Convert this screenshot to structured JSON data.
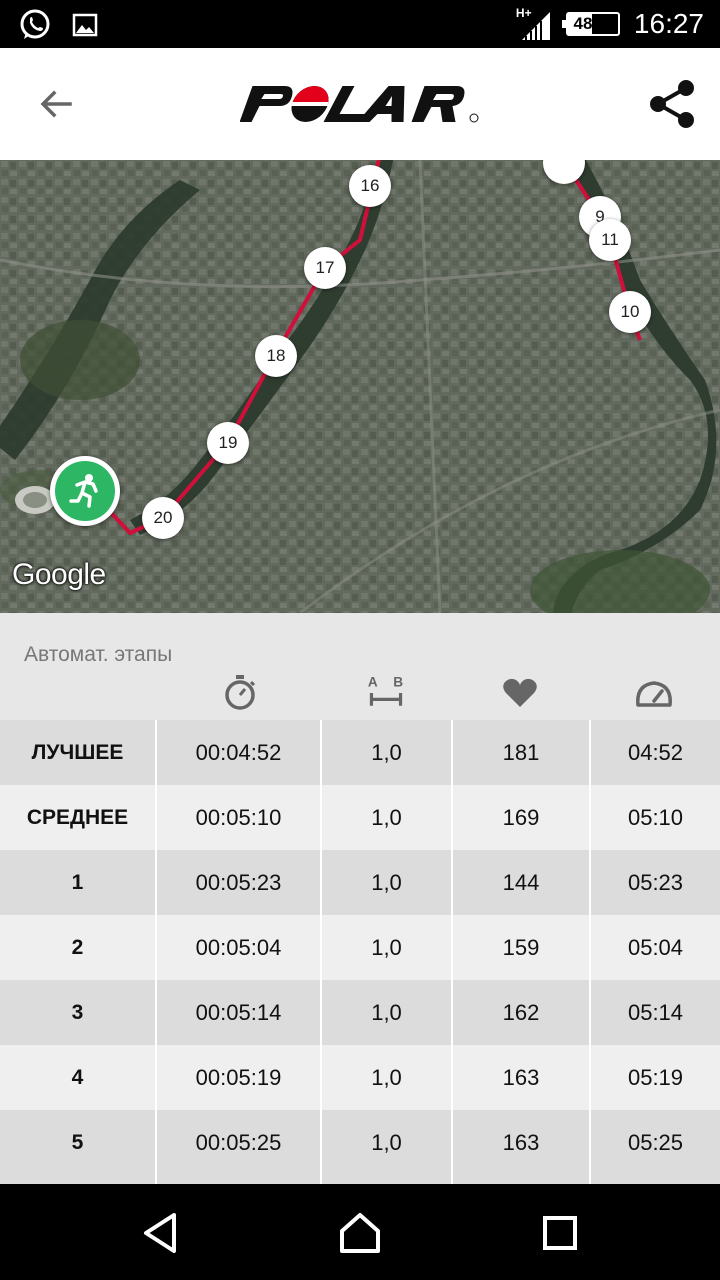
{
  "status_bar": {
    "time": "16:27",
    "battery_percent": "48 %",
    "battery_level": 0.48,
    "network": "H+"
  },
  "app_bar": {
    "logo_text": "POLAR",
    "back_icon": "arrow-left-icon",
    "share_icon": "share-icon"
  },
  "map": {
    "attribution": "Google",
    "route_color": "#d0103a",
    "start_color": "#2db664",
    "markers": [
      "16",
      "17",
      "18",
      "19",
      "20",
      "9",
      "11",
      "10"
    ]
  },
  "laps": {
    "title": "Автомат. этапы",
    "column_icons": [
      "stopwatch-icon",
      "distance-icon",
      "heart-icon",
      "speedometer-icon"
    ],
    "rows": [
      {
        "label": "ЛУЧШЕЕ",
        "time": "00:04:52",
        "distance": "1,0",
        "hr": "181",
        "pace": "04:52"
      },
      {
        "label": "СРЕДНЕЕ",
        "time": "00:05:10",
        "distance": "1,0",
        "hr": "169",
        "pace": "05:10"
      },
      {
        "label": "1",
        "time": "00:05:23",
        "distance": "1,0",
        "hr": "144",
        "pace": "05:23"
      },
      {
        "label": "2",
        "time": "00:05:04",
        "distance": "1,0",
        "hr": "159",
        "pace": "05:04"
      },
      {
        "label": "3",
        "time": "00:05:14",
        "distance": "1,0",
        "hr": "162",
        "pace": "05:14"
      },
      {
        "label": "4",
        "time": "00:05:19",
        "distance": "1,0",
        "hr": "163",
        "pace": "05:19"
      },
      {
        "label": "5",
        "time": "00:05:25",
        "distance": "1,0",
        "hr": "163",
        "pace": "05:25"
      }
    ]
  },
  "nav_bar": {
    "icons": [
      "back-triangle-icon",
      "home-icon",
      "recents-icon"
    ]
  }
}
